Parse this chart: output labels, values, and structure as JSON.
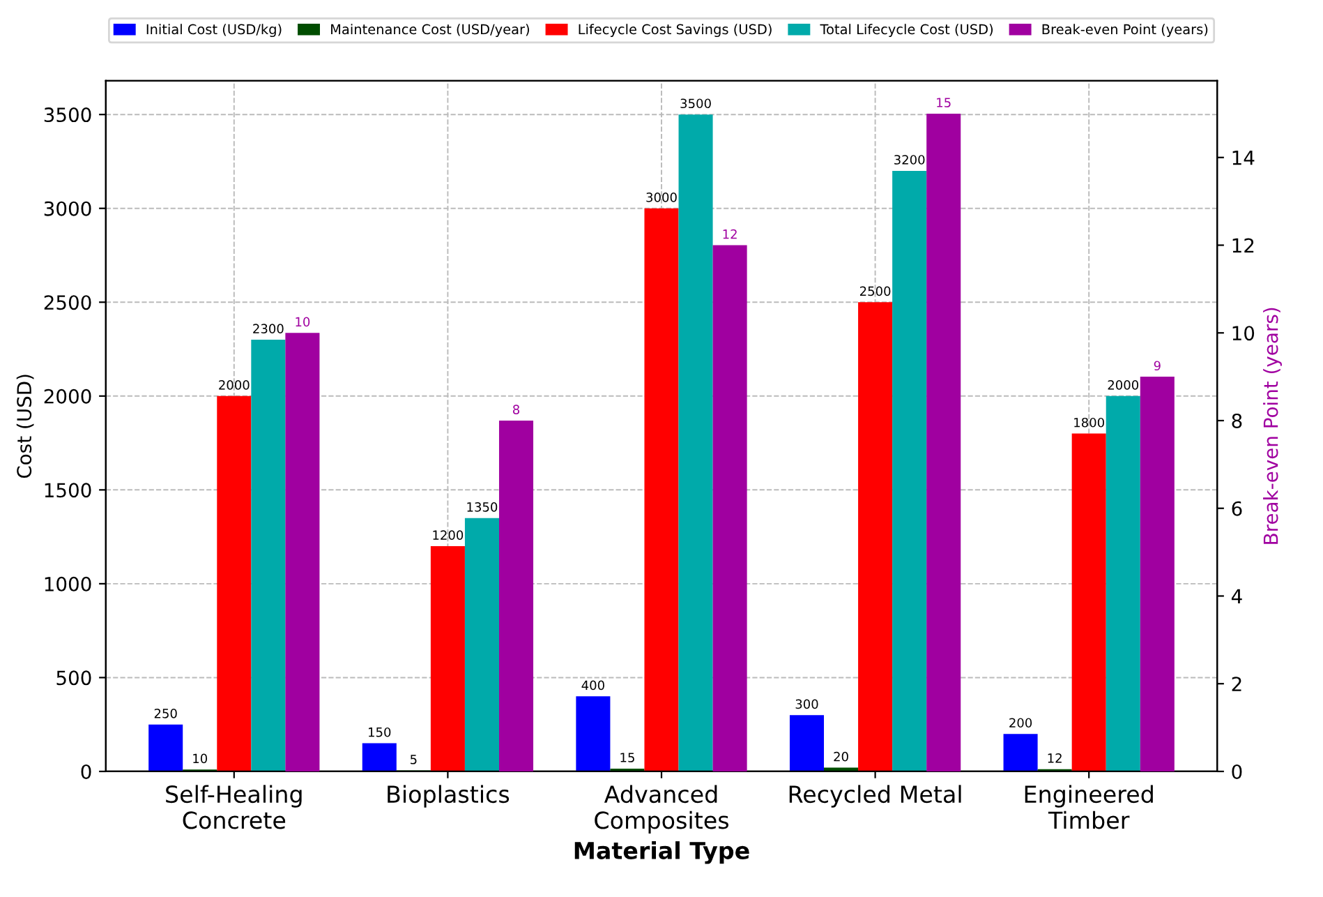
{
  "chart_data": {
    "type": "bar",
    "xlabel": "Material Type",
    "ylabel": "Cost (USD)",
    "y2label": "Break-even Point (years)",
    "categories": [
      "Self-Healing\nConcrete",
      "Bioplastics",
      "Advanced\nComposites",
      "Recycled Metal",
      "Engineered\nTimber"
    ],
    "series": [
      {
        "name": "Initial Cost (USD/kg)",
        "color": "#0000ff",
        "values": [
          250,
          150,
          400,
          300,
          200
        ]
      },
      {
        "name": "Maintenance Cost (USD/year)",
        "color": "#004d00",
        "values": [
          10,
          5,
          15,
          20,
          12
        ]
      },
      {
        "name": "Lifecycle Cost Savings (USD)",
        "color": "#ff0000",
        "values": [
          2000,
          1200,
          3000,
          2500,
          1800
        ]
      },
      {
        "name": "Total Lifecycle Cost (USD)",
        "color": "#00aaaa",
        "values": [
          2300,
          1350,
          3500,
          3200,
          2000
        ]
      },
      {
        "name": "Break-even Point (years)",
        "color": "#a000a0",
        "axis": "y2",
        "values": [
          10,
          8,
          12,
          15,
          9
        ]
      }
    ],
    "ylim": [
      0,
      3680
    ],
    "yticks": [
      0,
      500,
      1000,
      1500,
      2000,
      2500,
      3000,
      3500
    ],
    "y2lim": [
      0,
      15.75
    ],
    "y2ticks": [
      0,
      2,
      4,
      6,
      8,
      10,
      12,
      14
    ],
    "data_labels": true,
    "grid": true,
    "legend": "top"
  }
}
